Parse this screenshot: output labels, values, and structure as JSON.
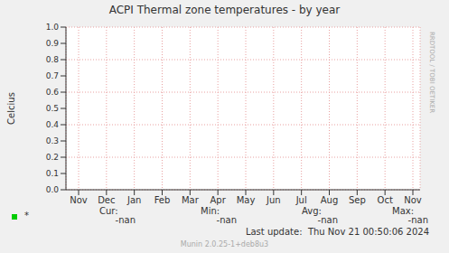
{
  "chart_data": {
    "type": "line",
    "title": "ACPI Thermal zone temperatures - by year",
    "y_label": "Celcius",
    "categories": [
      "Nov",
      "Dec",
      "Jan",
      "Feb",
      "Mar",
      "Apr",
      "May",
      "Jun",
      "Jul",
      "Aug",
      "Sep",
      "Oct",
      "Nov"
    ],
    "series": [
      {
        "name": "*",
        "color": "#00cc00",
        "values": [
          null,
          null,
          null,
          null,
          null,
          null,
          null,
          null,
          null,
          null,
          null,
          null,
          null
        ],
        "stats": [
          {
            "label": "Cur:",
            "value": "-nan"
          },
          {
            "label": "Min:",
            "value": "-nan"
          },
          {
            "label": "Avg:",
            "value": "-nan"
          },
          {
            "label": "Max:",
            "value": "-nan"
          }
        ]
      }
    ],
    "ylim": [
      0,
      1
    ],
    "yticks": [
      {
        "value": 0,
        "label": "0.0"
      },
      0.1,
      0.2,
      0.3,
      0.4,
      0.5,
      0.6,
      0.7,
      0.8,
      0.9,
      {
        "value": 1,
        "label": "1.0"
      }
    ],
    "grid": true,
    "annotations": [
      "Last update:  Thu Nov 21 00:50:06 2024",
      "Munin 2.0.25-1+deb8u3",
      "RRDTOOL / TOBI OETIKER"
    ]
  }
}
